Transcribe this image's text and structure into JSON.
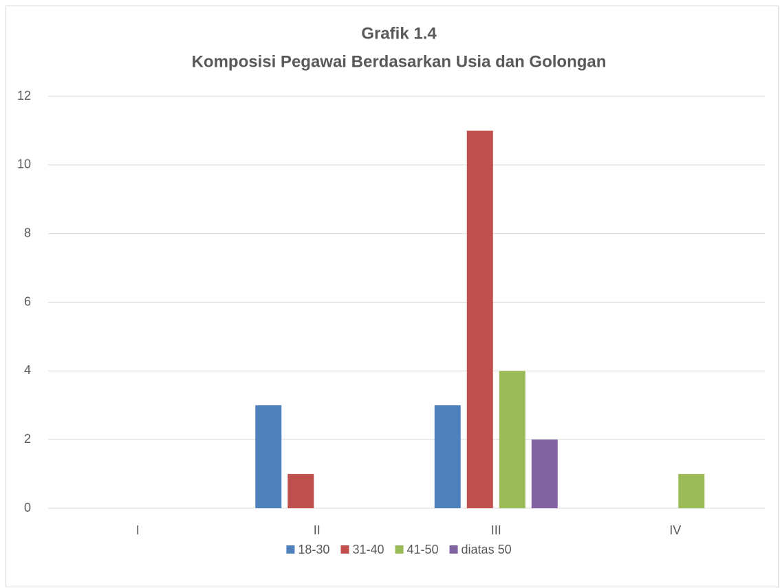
{
  "chart_data": {
    "type": "bar",
    "title": "Grafik 1.4",
    "subtitle": "Komposisi Pegawai Berdasarkan Usia dan Golongan",
    "categories": [
      "I",
      "II",
      "III",
      "IV"
    ],
    "series": [
      {
        "name": "18-30",
        "color": "#4f81bd",
        "values": [
          0,
          3,
          3,
          0
        ]
      },
      {
        "name": "31-40",
        "color": "#c0504d",
        "values": [
          0,
          1,
          11,
          0
        ]
      },
      {
        "name": "41-50",
        "color": "#9bbb59",
        "values": [
          0,
          0,
          4,
          1
        ]
      },
      {
        "name": "diatas 50",
        "color": "#8064a2",
        "values": [
          0,
          0,
          2,
          0
        ]
      }
    ],
    "ylim": [
      0,
      12
    ],
    "yticks": [
      0,
      2,
      4,
      6,
      8,
      10,
      12
    ],
    "grid": true,
    "legend": "bottom"
  }
}
